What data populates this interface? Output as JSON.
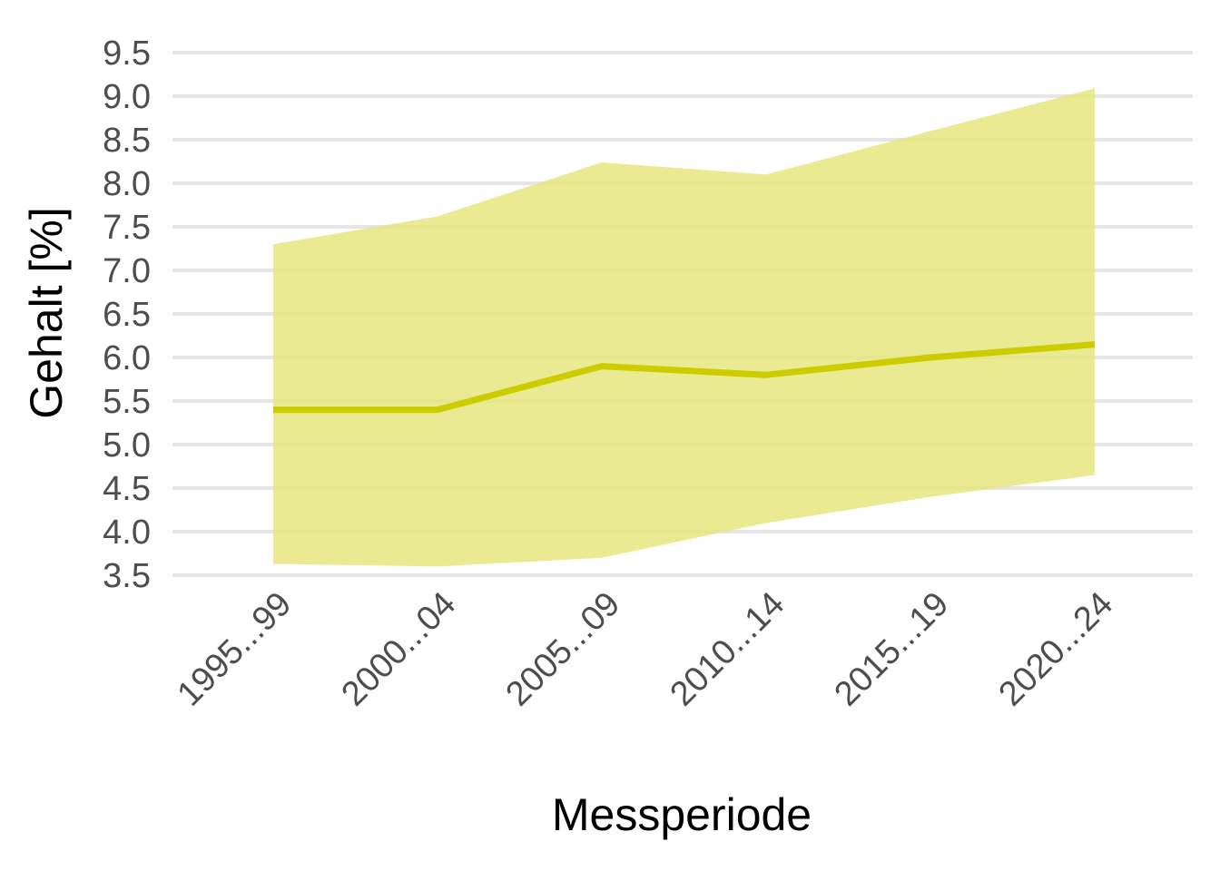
{
  "chart_data": {
    "type": "area",
    "title": "",
    "xlabel": "Messperiode",
    "ylabel": "Gehalt [%]",
    "categories": [
      "1995...99",
      "2000...04",
      "2005...09",
      "2010...14",
      "2015...19",
      "2020...24"
    ],
    "series": [
      {
        "values": [
          5.4,
          5.4,
          5.9,
          5.8,
          6.0,
          6.15
        ],
        "color": "#cccc00"
      }
    ],
    "band": {
      "lower": [
        3.63,
        3.6,
        3.7,
        4.1,
        4.4,
        4.65
      ],
      "upper": [
        7.3,
        7.62,
        8.24,
        8.1,
        8.6,
        9.09
      ],
      "color": "#e6e680"
    },
    "yticks": [
      "3.5",
      "4.0",
      "4.5",
      "5.0",
      "5.5",
      "6.0",
      "6.5",
      "7.0",
      "7.5",
      "8.0",
      "8.5",
      "9.0",
      "9.5"
    ],
    "ylim": [
      3.5,
      9.5
    ],
    "grid": "horizontal",
    "legend": "none"
  }
}
